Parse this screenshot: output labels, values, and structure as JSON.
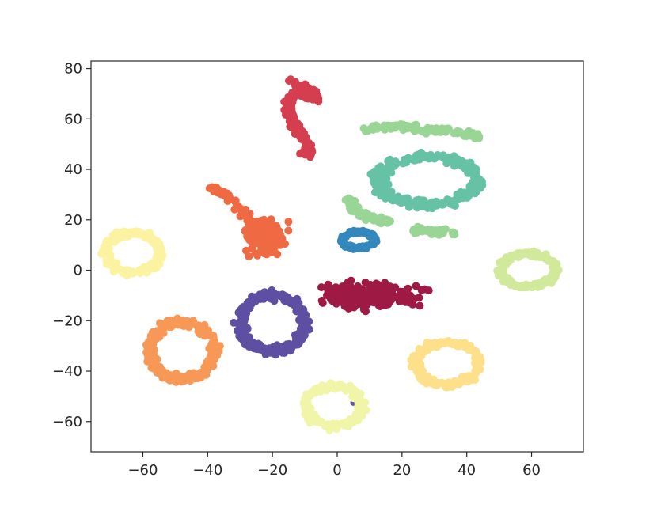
{
  "chart_data": {
    "type": "scatter",
    "title": "",
    "xlabel": "",
    "ylabel": "",
    "xlim": [
      -76,
      76
    ],
    "ylim": [
      -72,
      83
    ],
    "xticks": [
      -60,
      -40,
      -20,
      0,
      20,
      40,
      60
    ],
    "yticks": [
      -60,
      -40,
      -20,
      0,
      20,
      40,
      60,
      80
    ],
    "xtick_labels": [
      "−60",
      "−40",
      "−20",
      "0",
      "20",
      "40",
      "60"
    ],
    "ytick_labels": [
      "−60",
      "−40",
      "−20",
      "0",
      "20",
      "40",
      "60",
      "80"
    ],
    "grid": false,
    "legend": "none",
    "clusters": [
      {
        "shape": "ring",
        "color": "#3288bd",
        "center": [
          6.5,
          12
        ],
        "radius": [
          5,
          3.2
        ],
        "n": 120
      },
      {
        "shape": "ring",
        "color": "#5e4fa2",
        "center": [
          -20,
          -21
        ],
        "radius": [
          10,
          11
        ],
        "n": 230
      },
      {
        "shape": "point",
        "color": "#5e4fa2",
        "center": [
          5,
          -52.5
        ]
      },
      {
        "shape": "ring",
        "color": "#66c2a5",
        "center": [
          28,
          35.5
        ],
        "radius": [
          15,
          9.5
        ],
        "n": 260
      },
      {
        "shape": "arc",
        "color": "#99d594",
        "points": [
          [
            8,
            56
          ],
          [
            15,
            57
          ],
          [
            22,
            56.5
          ],
          [
            28,
            55.5
          ],
          [
            35,
            55
          ],
          [
            40,
            54
          ],
          [
            44,
            53
          ]
        ],
        "n": 90
      },
      {
        "shape": "arc",
        "color": "#99d594",
        "points": [
          [
            3,
            29
          ],
          [
            5,
            25
          ],
          [
            8,
            22
          ],
          [
            12,
            20
          ],
          [
            17,
            19
          ]
        ],
        "n": 60
      },
      {
        "shape": "arc",
        "color": "#99d594",
        "points": [
          [
            24,
            16
          ],
          [
            28,
            15.5
          ],
          [
            32,
            15
          ],
          [
            36,
            15.5
          ]
        ],
        "n": 45
      },
      {
        "shape": "ring",
        "color": "#d0e99a",
        "center": [
          59,
          0
        ],
        "radius": [
          8.5,
          6.5
        ],
        "n": 180
      },
      {
        "shape": "ring",
        "color": "#fee08b",
        "center": [
          34,
          -37
        ],
        "radius": [
          9.5,
          8.5
        ],
        "n": 200
      },
      {
        "shape": "ring",
        "color": "#f0f5a8",
        "center": [
          -1,
          -54
        ],
        "radius": [
          8.5,
          8
        ],
        "n": 180
      },
      {
        "shape": "ring",
        "color": "#fbf3a2",
        "center": [
          -63,
          7
        ],
        "radius": [
          8.5,
          8
        ],
        "n": 170
      },
      {
        "shape": "ring",
        "color": "#f89856",
        "center": [
          -48,
          -32
        ],
        "radius": [
          10,
          11
        ],
        "n": 220
      },
      {
        "shape": "blob",
        "color": "#ef6a43",
        "center": [
          -22,
          13
        ],
        "spread": [
          4,
          4.5
        ],
        "n": 170
      },
      {
        "shape": "arc",
        "color": "#ef6a43",
        "points": [
          [
            -39,
            33
          ],
          [
            -36,
            31
          ],
          [
            -33,
            28
          ],
          [
            -30,
            24
          ],
          [
            -27,
            20
          ],
          [
            -25,
            18
          ]
        ],
        "n": 70
      },
      {
        "shape": "blob",
        "color": "#9e1a45",
        "center": [
          11,
          -10
        ],
        "spread": [
          10,
          3.2
        ],
        "n": 240
      },
      {
        "shape": "arc",
        "color": "#d53e4f",
        "points": [
          [
            -14,
            74
          ],
          [
            -10,
            73
          ],
          [
            -8,
            71
          ],
          [
            -6,
            68
          ],
          [
            -9,
            69
          ],
          [
            -13,
            70
          ],
          [
            -15,
            66
          ],
          [
            -15,
            62
          ],
          [
            -13,
            58
          ],
          [
            -12,
            55
          ],
          [
            -10,
            52
          ],
          [
            -9,
            49
          ],
          [
            -8,
            46
          ],
          [
            -11,
            47
          ]
        ],
        "n": 200
      }
    ]
  }
}
